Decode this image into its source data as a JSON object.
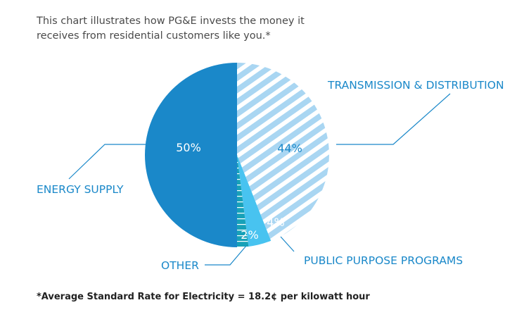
{
  "intro": {
    "line1": "This chart illustrates how PG&E invests the money it",
    "line2": "receives from residential customers like you.*"
  },
  "footnote": "*Average Standard Rate for Electricity = 18.2¢ per kilowatt hour",
  "colors": {
    "energy_supply": "#1a88c9",
    "transmission_stripe": "#a9d6f2",
    "public_purpose": "#48c3f0",
    "other": "#17a1b8",
    "label": "#1a88c9",
    "leader": "#1a88c9"
  },
  "chart_data": {
    "type": "pie",
    "title": "",
    "slices": [
      {
        "name": "TRANSMISSION & DISTRIBUTION",
        "value": 44,
        "label": "44%"
      },
      {
        "name": "PUBLIC PURPOSE PROGRAMS",
        "value": 4,
        "label": "4%"
      },
      {
        "name": "OTHER",
        "value": 2,
        "label": "2%"
      },
      {
        "name": "ENERGY SUPPLY",
        "value": 50,
        "label": "50%"
      }
    ],
    "start": "12 o'clock",
    "direction": "clockwise"
  }
}
